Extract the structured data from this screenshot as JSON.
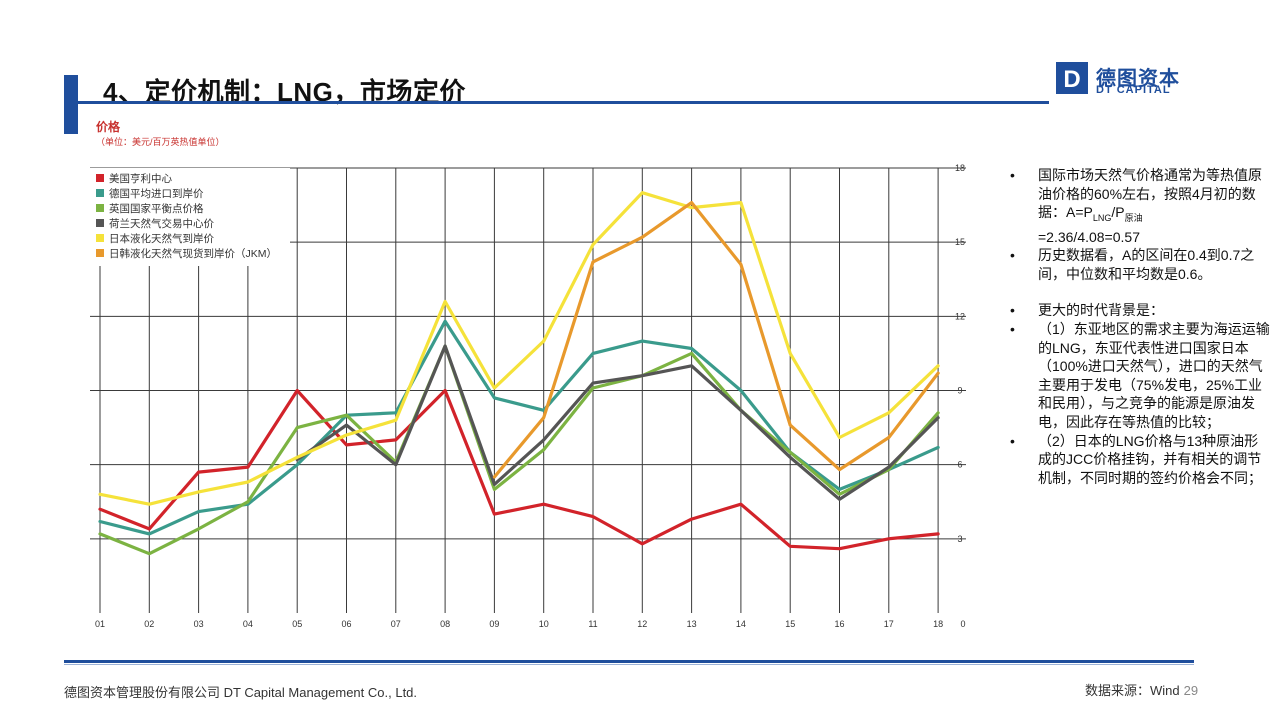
{
  "header": {
    "title": "4、定价机制：LNG，市场定价",
    "logo_cn": "德图资本",
    "logo_en": "DT CAPITAL",
    "logo_letter": "D"
  },
  "chart_labels": {
    "price": "价格",
    "unit": "（单位：美元/百万英热值单位）"
  },
  "chart_data": {
    "type": "line",
    "x": [
      "01",
      "02",
      "03",
      "04",
      "05",
      "06",
      "07",
      "08",
      "09",
      "10",
      "11",
      "12",
      "13",
      "14",
      "15",
      "16",
      "17",
      "18"
    ],
    "ylim": [
      0,
      18
    ],
    "y_ticks": [
      "3",
      "6",
      "9",
      "12",
      "15",
      "18"
    ],
    "y_zero_label": "0",
    "grid": true,
    "legend_position": "top-left",
    "series": [
      {
        "name": "美国亨利中心",
        "color": "#d2232a",
        "values": [
          4.2,
          3.4,
          5.7,
          5.9,
          9.0,
          6.8,
          7.0,
          9.0,
          4.0,
          4.4,
          3.9,
          2.8,
          3.8,
          4.4,
          2.7,
          2.6,
          3.0,
          3.2
        ]
      },
      {
        "name": "德国平均进口到岸价",
        "color": "#3a9b8c",
        "values": [
          3.7,
          3.2,
          4.1,
          4.4,
          6.0,
          8.0,
          8.1,
          11.8,
          8.7,
          8.2,
          10.5,
          11.0,
          10.7,
          9.0,
          6.5,
          5.0,
          5.8,
          6.7
        ]
      },
      {
        "name": "英国国家平衡点价格",
        "color": "#7cb342",
        "values": [
          3.2,
          2.4,
          3.4,
          4.5,
          7.5,
          8.0,
          6.1,
          10.8,
          5.0,
          6.6,
          9.1,
          9.6,
          10.5,
          8.2,
          6.5,
          4.8,
          5.8,
          8.1
        ]
      },
      {
        "name": "荷兰天然气交易中心价",
        "color": "#555555",
        "values": [
          null,
          null,
          null,
          null,
          6.2,
          7.6,
          6.0,
          10.8,
          5.2,
          7.0,
          9.3,
          9.6,
          10.0,
          8.2,
          6.3,
          4.6,
          5.9,
          7.9
        ]
      },
      {
        "name": "日本液化天然气到岸价",
        "color": "#f5e23a",
        "values": [
          4.8,
          4.4,
          4.9,
          5.3,
          6.3,
          7.2,
          7.8,
          12.6,
          9.1,
          11.0,
          14.9,
          17.0,
          16.4,
          16.6,
          10.5,
          7.1,
          8.1,
          10.0
        ]
      },
      {
        "name": "日韩液化天然气现货到岸价（JKM）",
        "color": "#e8992c",
        "values": [
          null,
          null,
          null,
          null,
          null,
          null,
          null,
          null,
          5.5,
          7.9,
          14.2,
          15.2,
          16.6,
          14.1,
          7.6,
          5.8,
          7.1,
          9.7
        ]
      }
    ]
  },
  "bullets": [
    {
      "parts": [
        "国际市场天然气价格通常为等热值原油价格的60%左右，按照4月初的数据：A=P",
        "LNG",
        "/P",
        "原油",
        "=2.36/4.08=0.57"
      ]
    },
    {
      "text": "历史数据看，A的区间在0.4到0.7之间，中位数和平均数是0.6。"
    },
    {
      "text": "更大的时代背景是："
    },
    {
      "text": "（1）东亚地区的需求主要为海运运输的LNG，东亚代表性进口国家日本（100%进口天然气），进口的天然气主要用于发电（75%发电，25%工业和民用），与之竞争的能源是原油发电，因此存在等热值的比较；"
    },
    {
      "text": "（2）日本的LNG价格与13种原油形成的JCC价格挂钩，并有相关的调节机制，不同时期的签约价格会不同；"
    }
  ],
  "bullet_symbol": "•",
  "footer": {
    "company": "德图资本管理股份有限公司  DT Capital  Management  Co., Ltd.",
    "source": "数据来源：Wind",
    "page": "29"
  },
  "colors": {
    "brand": "#1f4e9c",
    "label_red": "#c8322f"
  }
}
